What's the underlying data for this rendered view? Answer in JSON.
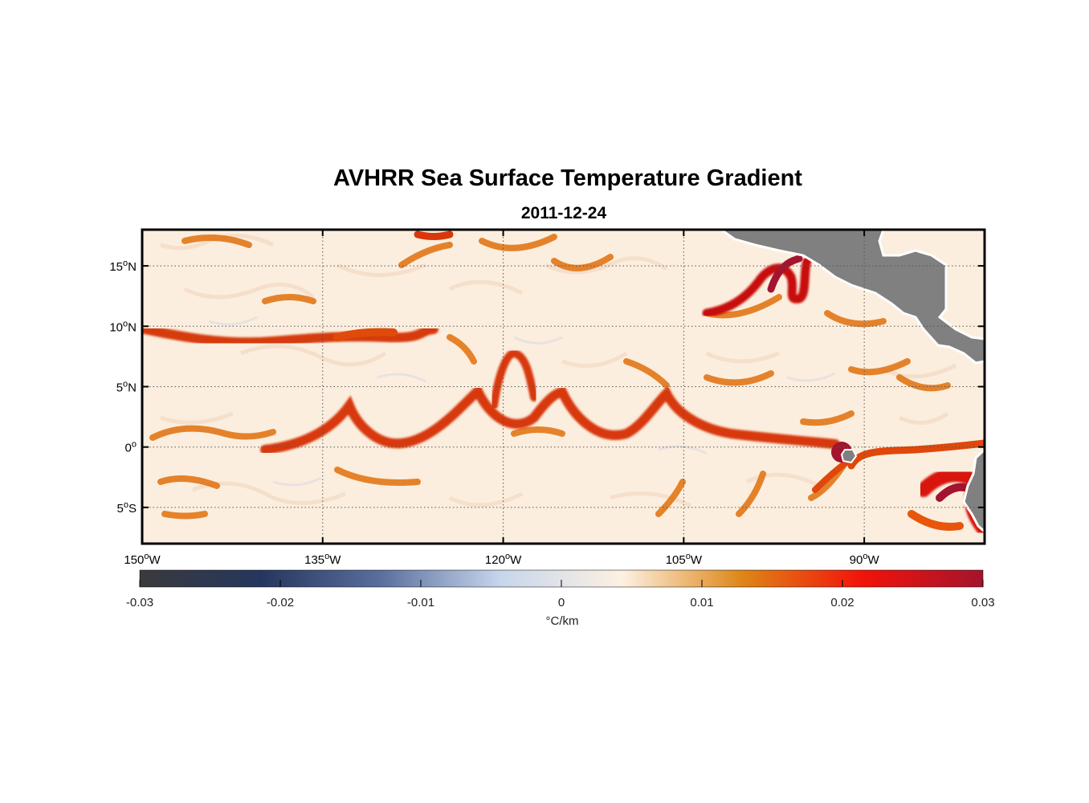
{
  "figure": {
    "title": "AVHRR Sea Surface Temperature Gradient",
    "subtitle": "2011-12-24"
  },
  "map": {
    "lon_range": [
      -150,
      -80
    ],
    "lat_range": [
      -8,
      18
    ],
    "lon_ticks": [
      {
        "value": -150,
        "num": "150",
        "hemi": "W"
      },
      {
        "value": -135,
        "num": "135",
        "hemi": "W"
      },
      {
        "value": -120,
        "num": "120",
        "hemi": "W"
      },
      {
        "value": -105,
        "num": "105",
        "hemi": "W"
      },
      {
        "value": -90,
        "num": "90",
        "hemi": "W"
      }
    ],
    "lat_ticks": [
      {
        "value": 15,
        "num": "15",
        "hemi": "N"
      },
      {
        "value": 10,
        "num": "10",
        "hemi": "N"
      },
      {
        "value": 5,
        "num": "5",
        "hemi": "N"
      },
      {
        "value": 0,
        "num": "0",
        "hemi": ""
      },
      {
        "value": -5,
        "num": "5",
        "hemi": "S"
      }
    ],
    "degree_mark": "o",
    "grid": "dotted",
    "land_color": "#808080",
    "ocean_base_color": "#fbeede"
  },
  "colorbar": {
    "range": [
      -0.03,
      0.03
    ],
    "ticks": [
      "-0.03",
      "-0.02",
      "-0.01",
      "0",
      "0.01",
      "0.02",
      "0.03"
    ],
    "label": "°C/km",
    "colormap": [
      "#3a3a3c",
      "#25365e",
      "#5b6f9d",
      "#c7d6ec",
      "#fdf1e2",
      "#de8617",
      "#f21309",
      "#a3142e"
    ]
  }
}
